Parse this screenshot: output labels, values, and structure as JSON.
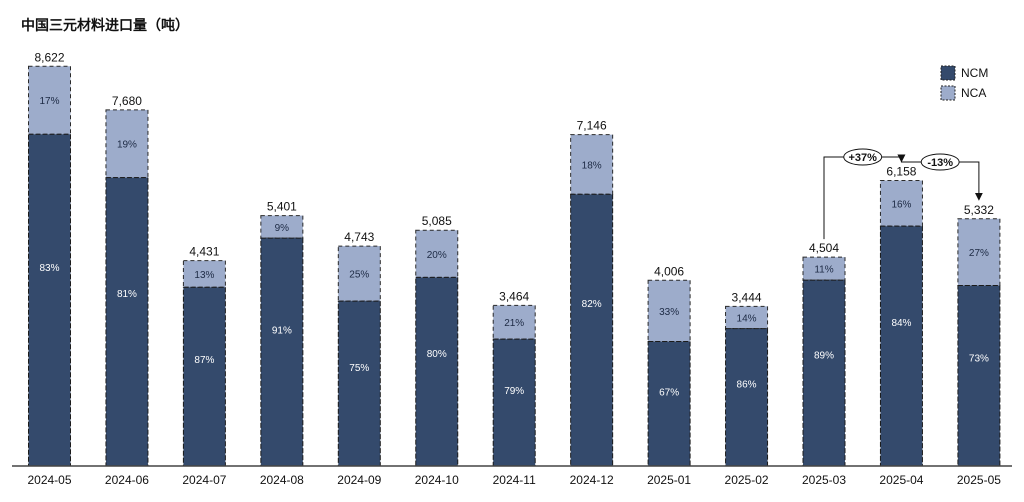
{
  "chart_data": {
    "type": "bar",
    "stacked": true,
    "title": "中国三元材料进口量（吨）",
    "categories": [
      "2024-05",
      "2024-06",
      "2024-07",
      "2024-08",
      "2024-09",
      "2024-10",
      "2024-11",
      "2024-12",
      "2025-01",
      "2025-02",
      "2025-03",
      "2025-04",
      "2025-05"
    ],
    "totals": [
      8622,
      7680,
      4431,
      5401,
      4743,
      5085,
      3464,
      7146,
      4006,
      3444,
      4504,
      6158,
      5332
    ],
    "total_labels": [
      "8,622",
      "7,680",
      "4,431",
      "5,401",
      "4,743",
      "5,085",
      "3,464",
      "7,146",
      "4,006",
      "3,444",
      "4,504",
      "6,158",
      "5,332"
    ],
    "series": [
      {
        "name": "NCM",
        "color": "#344a6c",
        "share_labels": [
          "83%",
          "81%",
          "87%",
          "91%",
          "75%",
          "80%",
          "79%",
          "82%",
          "67%",
          "86%",
          "89%",
          "84%",
          "73%"
        ],
        "values": [
          7156,
          6221,
          3855,
          4915,
          3557,
          4068,
          2737,
          5860,
          2684,
          2962,
          4009,
          5173,
          3892
        ]
      },
      {
        "name": "NCA",
        "color": "#9daccb",
        "share_labels": [
          "17%",
          "19%",
          "13%",
          "9%",
          "25%",
          "20%",
          "21%",
          "18%",
          "33%",
          "14%",
          "11%",
          "16%",
          "27%"
        ],
        "values": [
          1466,
          1459,
          576,
          486,
          1186,
          1017,
          727,
          1286,
          1322,
          482,
          495,
          985,
          1440
        ]
      }
    ],
    "ylim": [
      0,
      8800
    ],
    "legend_position": "top-right",
    "grid": false,
    "annotations": [
      {
        "text": "+37%",
        "from": "2025-03",
        "to": "2025-04"
      },
      {
        "text": "-13%",
        "from": "2025-04",
        "to": "2025-05"
      }
    ]
  }
}
